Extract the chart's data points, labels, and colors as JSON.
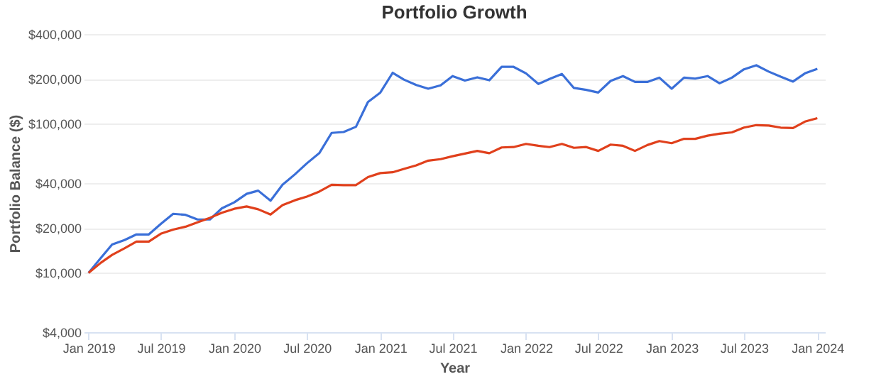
{
  "chart_data": {
    "type": "line",
    "title": "Portfolio Growth",
    "xlabel": "Year",
    "ylabel": "Portfolio Balance ($)",
    "log": "y",
    "grid": "y",
    "marker": "none",
    "line_style": "solid",
    "x": [
      "2019-01",
      "2019-02",
      "2019-03",
      "2019-04",
      "2019-05",
      "2019-06",
      "2019-07",
      "2019-08",
      "2019-09",
      "2019-10",
      "2019-11",
      "2019-12",
      "2020-01",
      "2020-02",
      "2020-03",
      "2020-04",
      "2020-05",
      "2020-06",
      "2020-07",
      "2020-08",
      "2020-09",
      "2020-10",
      "2020-11",
      "2020-12",
      "2021-01",
      "2021-02",
      "2021-03",
      "2021-04",
      "2021-05",
      "2021-06",
      "2021-07",
      "2021-08",
      "2021-09",
      "2021-10",
      "2021-11",
      "2021-12",
      "2022-01",
      "2022-02",
      "2022-03",
      "2022-04",
      "2022-05",
      "2022-06",
      "2022-07",
      "2022-08",
      "2022-09",
      "2022-10",
      "2022-11",
      "2022-12",
      "2023-01",
      "2023-02",
      "2023-03",
      "2023-04",
      "2023-05",
      "2023-06",
      "2023-07",
      "2023-08",
      "2023-09",
      "2023-10",
      "2023-11",
      "2023-12",
      "2024-01"
    ],
    "xlim": [
      "2018-12-20",
      "2024-01-20"
    ],
    "xticks": [
      {
        "value": "2019-01",
        "label": "Jan 2019"
      },
      {
        "value": "2019-07",
        "label": "Jul 2019"
      },
      {
        "value": "2020-01",
        "label": "Jan 2020"
      },
      {
        "value": "2020-07",
        "label": "Jul 2020"
      },
      {
        "value": "2021-01",
        "label": "Jan 2021"
      },
      {
        "value": "2021-07",
        "label": "Jul 2021"
      },
      {
        "value": "2022-01",
        "label": "Jan 2022"
      },
      {
        "value": "2022-07",
        "label": "Jul 2022"
      },
      {
        "value": "2023-01",
        "label": "Jan 2023"
      },
      {
        "value": "2023-07",
        "label": "Jul 2023"
      },
      {
        "value": "2024-01",
        "label": "Jan 2024"
      }
    ],
    "ylim": [
      4000,
      400000
    ],
    "yticks": [
      {
        "value": 4000,
        "label": "$4,000"
      },
      {
        "value": 10000,
        "label": "$10,000"
      },
      {
        "value": 20000,
        "label": "$20,000"
      },
      {
        "value": 40000,
        "label": "$40,000"
      },
      {
        "value": 100000,
        "label": "$100,000"
      },
      {
        "value": 200000,
        "label": "$200,000"
      },
      {
        "value": 400000,
        "label": "$400,000"
      }
    ],
    "series": [
      {
        "color": "#3a6fd8",
        "values": [
          10000,
          12600,
          15500,
          16600,
          18100,
          18100,
          21300,
          24900,
          24500,
          22800,
          22800,
          27100,
          29700,
          33900,
          35600,
          30500,
          39000,
          45800,
          54300,
          63500,
          86900,
          88100,
          95500,
          140000,
          162000,
          220000,
          198000,
          182000,
          172000,
          181000,
          209000,
          195000,
          205000,
          196000,
          241000,
          241000,
          218000,
          185000,
          200000,
          216000,
          174000,
          169000,
          162000,
          194000,
          209000,
          191000,
          191000,
          204000,
          172000,
          204000,
          201000,
          209000,
          187000,
          204000,
          232000,
          247000,
          224000,
          207000,
          192000,
          218000,
          234000
        ]
      },
      {
        "color": "#e0401c",
        "values": [
          10000,
          11700,
          13200,
          14600,
          16200,
          16200,
          18300,
          19500,
          20400,
          21800,
          23400,
          25300,
          26900,
          27900,
          26700,
          24600,
          28500,
          30700,
          32500,
          35100,
          39000,
          38800,
          38800,
          43900,
          46700,
          47300,
          49800,
          52600,
          56600,
          57900,
          60600,
          63100,
          65800,
          63500,
          69400,
          69800,
          73300,
          71200,
          69800,
          73300,
          69000,
          69800,
          65800,
          72500,
          71200,
          65800,
          72000,
          76600,
          74100,
          79300,
          79300,
          83300,
          85800,
          87600,
          94300,
          98000,
          97400,
          94300,
          93700,
          103500,
          109000
        ]
      }
    ]
  }
}
